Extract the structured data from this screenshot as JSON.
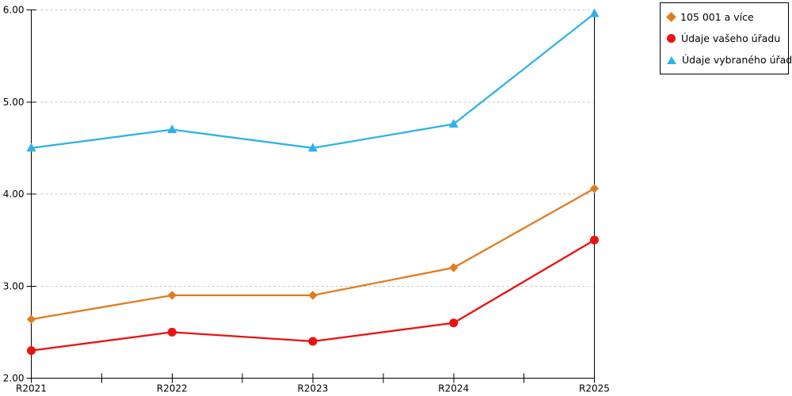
{
  "chart_data": {
    "type": "line",
    "title": "",
    "xlabel": "",
    "ylabel": "",
    "categories": [
      "R2021",
      "R2022",
      "R2023",
      "R2024",
      "R2025"
    ],
    "series": [
      {
        "name": "105 001 a více",
        "color": "#E07C1F",
        "marker": "diamond",
        "values": [
          2.64,
          2.9,
          2.9,
          3.2,
          4.06
        ]
      },
      {
        "name": "Údaje vašeho úřadu",
        "color": "#EE1111",
        "marker": "circle",
        "values": [
          2.3,
          2.5,
          2.4,
          2.6,
          3.5
        ]
      },
      {
        "name": "Údaje vybraného úřadu",
        "color": "#2EB2E9",
        "marker": "triangle",
        "values": [
          4.5,
          4.7,
          4.5,
          4.76,
          5.96
        ]
      }
    ],
    "ylim": [
      2.0,
      6.0
    ],
    "ytick_labels": [
      "2.00",
      "3.00",
      "4.00",
      "5.00",
      "6.00"
    ],
    "grid": "horizontal dotted lines at 3.00, 4.00, 5.00, 6.00",
    "legend_position": "top-right",
    "colors": {
      "axis": "#000000",
      "grid": "#c4c4c4",
      "background": "#ffffff"
    }
  }
}
